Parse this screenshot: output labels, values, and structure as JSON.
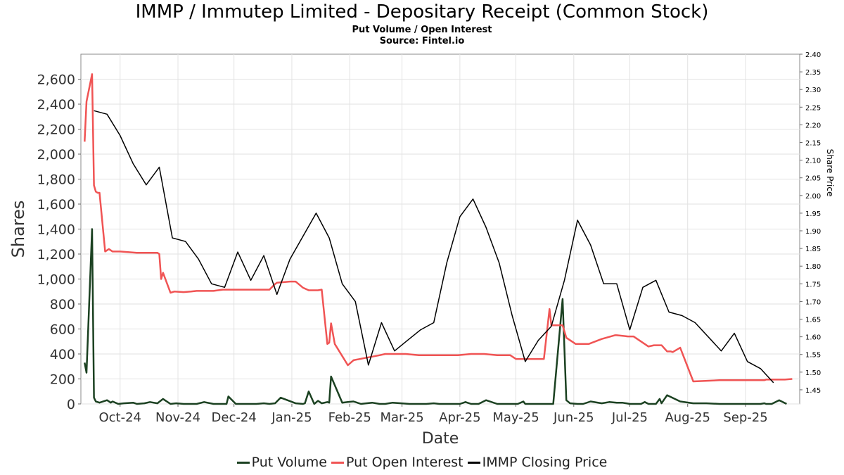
{
  "header": {
    "title": "IMMP / Immutep Limited - Depositary Receipt (Common Stock)",
    "subtitle": "Put Volume / Open Interest",
    "source": "Source: Fintel.io"
  },
  "chart_data": {
    "type": "line",
    "xlabel": "Date",
    "ylabel": "Shares",
    "y2label": "Share Price",
    "ylim": [
      0,
      2800
    ],
    "y2lim": [
      1.41,
      2.4
    ],
    "xlim": [
      "2024-09-10",
      "2025-09-30"
    ],
    "yticks": [
      0,
      200,
      400,
      600,
      800,
      1000,
      1200,
      1400,
      1600,
      1800,
      2000,
      2200,
      2400,
      2600
    ],
    "yticklabels": [
      "0",
      "200",
      "400",
      "600",
      "800",
      "1,000",
      "1,200",
      "1,400",
      "1,600",
      "1,800",
      "2,000",
      "2,200",
      "2,400",
      "2,600"
    ],
    "y2ticks": [
      1.45,
      1.5,
      1.55,
      1.6,
      1.65,
      1.7,
      1.75,
      1.8,
      1.85,
      1.9,
      1.95,
      2.0,
      2.05,
      2.1,
      2.15,
      2.2,
      2.25,
      2.3,
      2.35,
      2.4
    ],
    "y2ticklabels": [
      "1.45",
      "1.50",
      "1.55",
      "1.60",
      "1.65",
      "1.70",
      "1.75",
      "1.80",
      "1.85",
      "1.90",
      "1.95",
      "2.00",
      "2.05",
      "2.10",
      "2.15",
      "2.20",
      "2.25",
      "2.30",
      "2.35",
      "2.40"
    ],
    "xticks": [
      "2024-10-01",
      "2024-11-01",
      "2024-12-01",
      "2025-01-01",
      "2025-02-01",
      "2025-03-01",
      "2025-04-01",
      "2025-05-01",
      "2025-06-01",
      "2025-07-01",
      "2025-08-01",
      "2025-09-01"
    ],
    "xticklabels": [
      "Oct-24",
      "Nov-24",
      "Dec-24",
      "Jan-25",
      "Feb-25",
      "Mar-25",
      "Apr-25",
      "May-25",
      "Jun-25",
      "Jul-25",
      "Aug-25",
      "Sep-25"
    ],
    "grid": true,
    "legend_position": "bottom",
    "series": [
      {
        "name": "Put Volume",
        "axis": "left",
        "color": "#1b4121",
        "x": [
          "2024-09-12",
          "2024-09-13",
          "2024-09-16",
          "2024-09-17",
          "2024-09-18",
          "2024-09-20",
          "2024-09-24",
          "2024-09-26",
          "2024-09-27",
          "2024-09-30",
          "2024-10-03",
          "2024-10-08",
          "2024-10-10",
          "2024-10-14",
          "2024-10-17",
          "2024-10-21",
          "2024-10-24",
          "2024-10-28",
          "2024-10-31",
          "2024-11-04",
          "2024-11-08",
          "2024-11-11",
          "2024-11-15",
          "2024-11-20",
          "2024-11-25",
          "2024-11-27",
          "2024-11-28",
          "2024-12-02",
          "2024-12-06",
          "2024-12-10",
          "2024-12-13",
          "2024-12-17",
          "2024-12-20",
          "2024-12-23",
          "2024-12-26",
          "2025-01-03",
          "2025-01-07",
          "2025-01-08",
          "2025-01-10",
          "2025-01-13",
          "2025-01-15",
          "2025-01-17",
          "2025-01-20",
          "2025-01-21",
          "2025-01-22",
          "2025-01-28",
          "2025-01-31",
          "2025-02-03",
          "2025-02-07",
          "2025-02-10",
          "2025-02-13",
          "2025-02-17",
          "2025-02-20",
          "2025-02-24",
          "2025-03-05",
          "2025-03-10",
          "2025-03-14",
          "2025-03-18",
          "2025-03-21",
          "2025-03-25",
          "2025-04-01",
          "2025-04-04",
          "2025-04-07",
          "2025-04-11",
          "2025-04-15",
          "2025-04-21",
          "2025-04-25",
          "2025-04-30",
          "2025-05-02",
          "2025-05-05",
          "2025-05-06",
          "2025-05-08",
          "2025-05-14",
          "2025-05-16",
          "2025-05-19",
          "2025-05-21",
          "2025-05-26",
          "2025-05-28",
          "2025-05-30",
          "2025-06-03",
          "2025-06-06",
          "2025-06-10",
          "2025-06-16",
          "2025-06-20",
          "2025-06-24",
          "2025-06-27",
          "2025-07-01",
          "2025-07-07",
          "2025-07-09",
          "2025-07-11",
          "2025-07-15",
          "2025-07-17",
          "2025-07-18",
          "2025-07-21",
          "2025-07-28",
          "2025-08-04",
          "2025-08-11",
          "2025-08-18",
          "2025-08-25",
          "2025-09-02",
          "2025-09-09",
          "2025-09-11",
          "2025-09-12",
          "2025-09-15",
          "2025-09-19",
          "2025-09-23"
        ],
        "values": [
          330,
          250,
          1400,
          50,
          20,
          10,
          30,
          10,
          20,
          0,
          5,
          10,
          0,
          5,
          15,
          5,
          40,
          0,
          5,
          0,
          0,
          0,
          15,
          0,
          0,
          0,
          60,
          0,
          0,
          0,
          0,
          5,
          0,
          5,
          50,
          5,
          0,
          5,
          100,
          0,
          25,
          5,
          15,
          10,
          220,
          10,
          15,
          20,
          0,
          5,
          10,
          0,
          0,
          10,
          0,
          0,
          0,
          5,
          0,
          0,
          0,
          15,
          0,
          0,
          30,
          0,
          0,
          0,
          0,
          20,
          0,
          0,
          0,
          0,
          0,
          0,
          840,
          30,
          5,
          0,
          0,
          20,
          5,
          15,
          10,
          10,
          0,
          0,
          15,
          0,
          0,
          40,
          5,
          70,
          20,
          5,
          5,
          0,
          0,
          0,
          0,
          5,
          0,
          0,
          30,
          0
        ]
      },
      {
        "name": "Put Open Interest",
        "axis": "left",
        "color": "#f05454",
        "x": [
          "2024-09-12",
          "2024-09-13",
          "2024-09-16",
          "2024-09-17",
          "2024-09-18",
          "2024-09-19",
          "2024-09-20",
          "2024-09-23",
          "2024-09-24",
          "2024-09-25",
          "2024-09-27",
          "2024-10-01",
          "2024-10-10",
          "2024-10-21",
          "2024-10-22",
          "2024-10-23",
          "2024-10-24",
          "2024-10-28",
          "2024-10-30",
          "2024-11-04",
          "2024-11-08",
          "2024-11-11",
          "2024-11-20",
          "2024-11-25",
          "2024-12-02",
          "2024-12-10",
          "2024-12-20",
          "2024-12-23",
          "2024-12-24",
          "2024-12-31",
          "2025-01-03",
          "2025-01-07",
          "2025-01-10",
          "2025-01-15",
          "2025-01-17",
          "2025-01-20",
          "2025-01-21",
          "2025-01-22",
          "2025-01-24",
          "2025-01-31",
          "2025-02-03",
          "2025-02-10",
          "2025-02-17",
          "2025-02-20",
          "2025-03-03",
          "2025-03-10",
          "2025-03-17",
          "2025-03-24",
          "2025-03-31",
          "2025-04-07",
          "2025-04-10",
          "2025-04-14",
          "2025-04-21",
          "2025-04-28",
          "2025-05-01",
          "2025-05-05",
          "2025-05-12",
          "2025-05-16",
          "2025-05-19",
          "2025-05-20",
          "2025-05-26",
          "2025-05-28",
          "2025-06-02",
          "2025-06-06",
          "2025-06-09",
          "2025-06-16",
          "2025-06-23",
          "2025-06-24",
          "2025-06-30",
          "2025-07-03",
          "2025-07-11",
          "2025-07-14",
          "2025-07-15",
          "2025-07-18",
          "2025-07-21",
          "2025-07-23",
          "2025-07-24",
          "2025-07-28",
          "2025-08-04",
          "2025-08-18",
          "2025-09-11",
          "2025-09-12",
          "2025-09-22",
          "2025-09-26"
        ],
        "values": [
          2100,
          2420,
          2640,
          1750,
          1700,
          1690,
          1690,
          1220,
          1230,
          1240,
          1220,
          1220,
          1210,
          1210,
          1200,
          1000,
          1050,
          890,
          900,
          895,
          900,
          905,
          905,
          915,
          915,
          915,
          915,
          960,
          970,
          980,
          980,
          930,
          910,
          910,
          915,
          480,
          490,
          645,
          480,
          310,
          350,
          370,
          390,
          400,
          400,
          390,
          390,
          390,
          390,
          400,
          400,
          400,
          390,
          390,
          360,
          360,
          360,
          360,
          760,
          630,
          630,
          530,
          480,
          480,
          480,
          520,
          550,
          550,
          540,
          540,
          460,
          470,
          470,
          470,
          420,
          420,
          415,
          450,
          180,
          190,
          190,
          195,
          195,
          200
        ]
      },
      {
        "name": "IMMP Closing Price",
        "axis": "right",
        "color": "#000000",
        "x": [
          "2024-09-17",
          "2024-09-24",
          "2024-10-01",
          "2024-10-08",
          "2024-10-15",
          "2024-10-22",
          "2024-10-29",
          "2024-11-05",
          "2024-11-12",
          "2024-11-19",
          "2024-11-26",
          "2024-12-03",
          "2024-12-10",
          "2024-12-17",
          "2024-12-24",
          "2024-12-31",
          "2025-01-14",
          "2025-01-21",
          "2025-01-28",
          "2025-02-04",
          "2025-02-11",
          "2025-02-18",
          "2025-02-25",
          "2025-03-04",
          "2025-03-11",
          "2025-03-18",
          "2025-03-25",
          "2025-04-01",
          "2025-04-08",
          "2025-04-15",
          "2025-04-22",
          "2025-04-29",
          "2025-05-06",
          "2025-05-13",
          "2025-05-20",
          "2025-05-27",
          "2025-06-03",
          "2025-06-10",
          "2025-06-17",
          "2025-06-24",
          "2025-07-01",
          "2025-07-08",
          "2025-07-15",
          "2025-07-22",
          "2025-07-29",
          "2025-08-05",
          "2025-08-19",
          "2025-08-26",
          "2025-09-02",
          "2025-09-09",
          "2025-09-16"
        ],
        "values": [
          2.24,
          2.23,
          2.17,
          2.09,
          2.03,
          2.08,
          1.88,
          1.87,
          1.82,
          1.75,
          1.74,
          1.84,
          1.76,
          1.83,
          1.72,
          1.82,
          1.95,
          1.88,
          1.75,
          1.7,
          1.52,
          1.64,
          1.56,
          1.59,
          1.62,
          1.64,
          1.81,
          1.94,
          1.99,
          1.91,
          1.81,
          1.66,
          1.53,
          1.59,
          1.63,
          1.76,
          1.93,
          1.86,
          1.75,
          1.75,
          1.62,
          1.74,
          1.76,
          1.67,
          1.66,
          1.64,
          1.56,
          1.61,
          1.53,
          1.51,
          1.47
        ]
      }
    ]
  }
}
